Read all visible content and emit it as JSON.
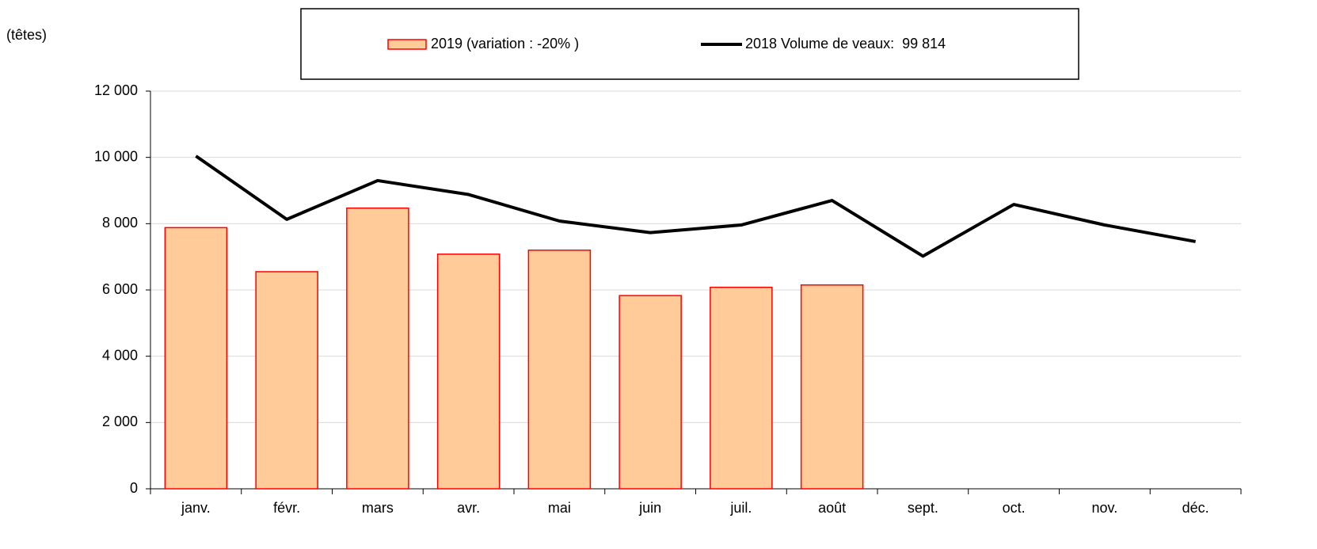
{
  "chart_data": {
    "type": "bar_line",
    "y_label": "(têtes)",
    "categories": [
      "janv.",
      "févr.",
      "mars",
      "avr.",
      "mai",
      "juin",
      "juil.",
      "août",
      "sept.",
      "oct.",
      "nov.",
      "déc."
    ],
    "series": [
      {
        "name": "2019 (variation : -20% )",
        "type": "bar",
        "color": "#ffcc99",
        "edge_color": "#ff0000",
        "values": [
          7880,
          6550,
          8470,
          7080,
          7200,
          5830,
          6080,
          6150,
          null,
          null,
          null,
          null
        ]
      },
      {
        "name": "2018 Volume de veaux:  99 814",
        "type": "line",
        "color": "#000000",
        "values": [
          10040,
          8130,
          9300,
          8880,
          8080,
          7730,
          7960,
          8700,
          7020,
          8580,
          7960,
          7460
        ]
      }
    ],
    "ylim": [
      0,
      12000
    ],
    "yticks": [
      0,
      {
        "value": 2000,
        "label": "2 000"
      },
      {
        "value": 4000,
        "label": "4 000"
      },
      {
        "value": 6000,
        "label": "6 000"
      },
      {
        "value": 8000,
        "label": "8 000"
      },
      {
        "value": 10000,
        "label": "10 000"
      },
      {
        "value": 12000,
        "label": "12 000"
      }
    ],
    "grid": true
  }
}
